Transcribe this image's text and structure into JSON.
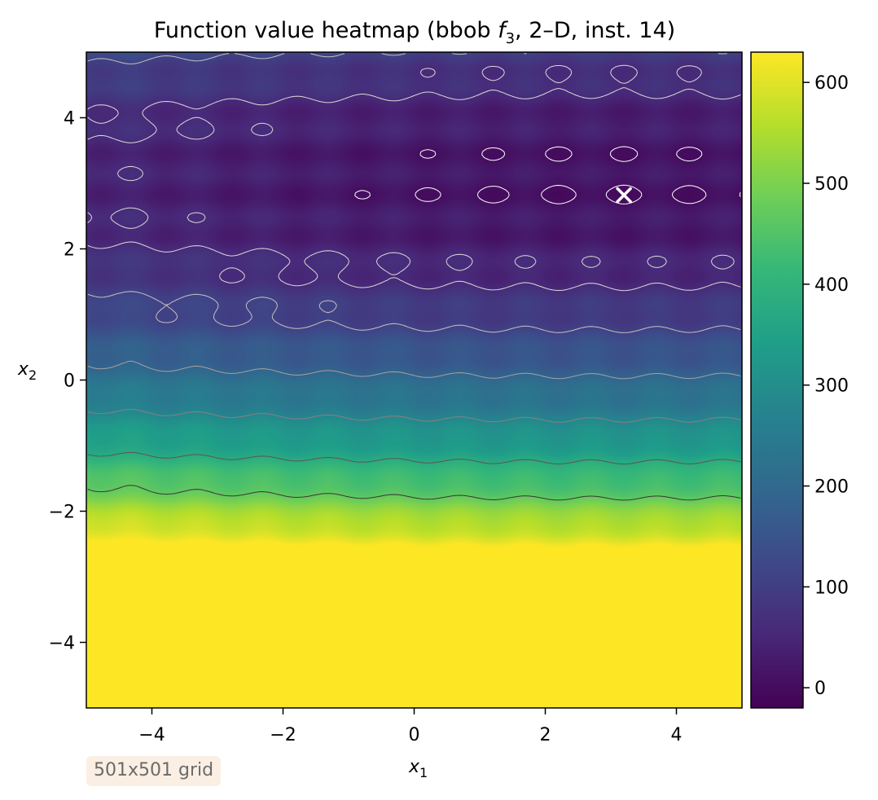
{
  "chart_data": {
    "type": "heatmap",
    "title_main": "Function value heatmap (bbob ",
    "title_fn": "f",
    "title_fn_sub": "3",
    "title_rest": ", 2–D, inst. 14)",
    "xlabel": "x",
    "xlabel_sub": "1",
    "ylabel": "x",
    "ylabel_sub": "2",
    "xlim": [
      -5,
      5
    ],
    "ylim": [
      -5,
      5
    ],
    "x_ticks": [
      -4,
      -2,
      0,
      2,
      4
    ],
    "x_tick_labels": [
      "−4",
      "−2",
      "0",
      "2",
      "4"
    ],
    "y_ticks": [
      -4,
      -2,
      0,
      2,
      4
    ],
    "y_tick_labels": [
      "−4",
      "−2",
      "0",
      "2",
      "4"
    ],
    "colorbar": {
      "min": -20,
      "max": 630,
      "ticks": [
        0,
        100,
        200,
        300,
        400,
        500,
        600
      ],
      "tick_labels": [
        "0",
        "100",
        "200",
        "300",
        "400",
        "500",
        "600"
      ],
      "colormap": "viridis"
    },
    "optimum": {
      "x": 3.2,
      "y": 2.82,
      "marker": "x",
      "color": "#ffffff"
    },
    "contour_levels": [
      5,
      60,
      110,
      190,
      280,
      380,
      470
    ],
    "grid": false,
    "resolution_note": "501x501 grid"
  },
  "colors": {
    "viridis_stops": [
      "#440154",
      "#482878",
      "#3e4989",
      "#31688e",
      "#26828e",
      "#1f9e89",
      "#35b779",
      "#6ece58",
      "#b5de2b",
      "#fde725"
    ],
    "marker": "#ffffff"
  }
}
